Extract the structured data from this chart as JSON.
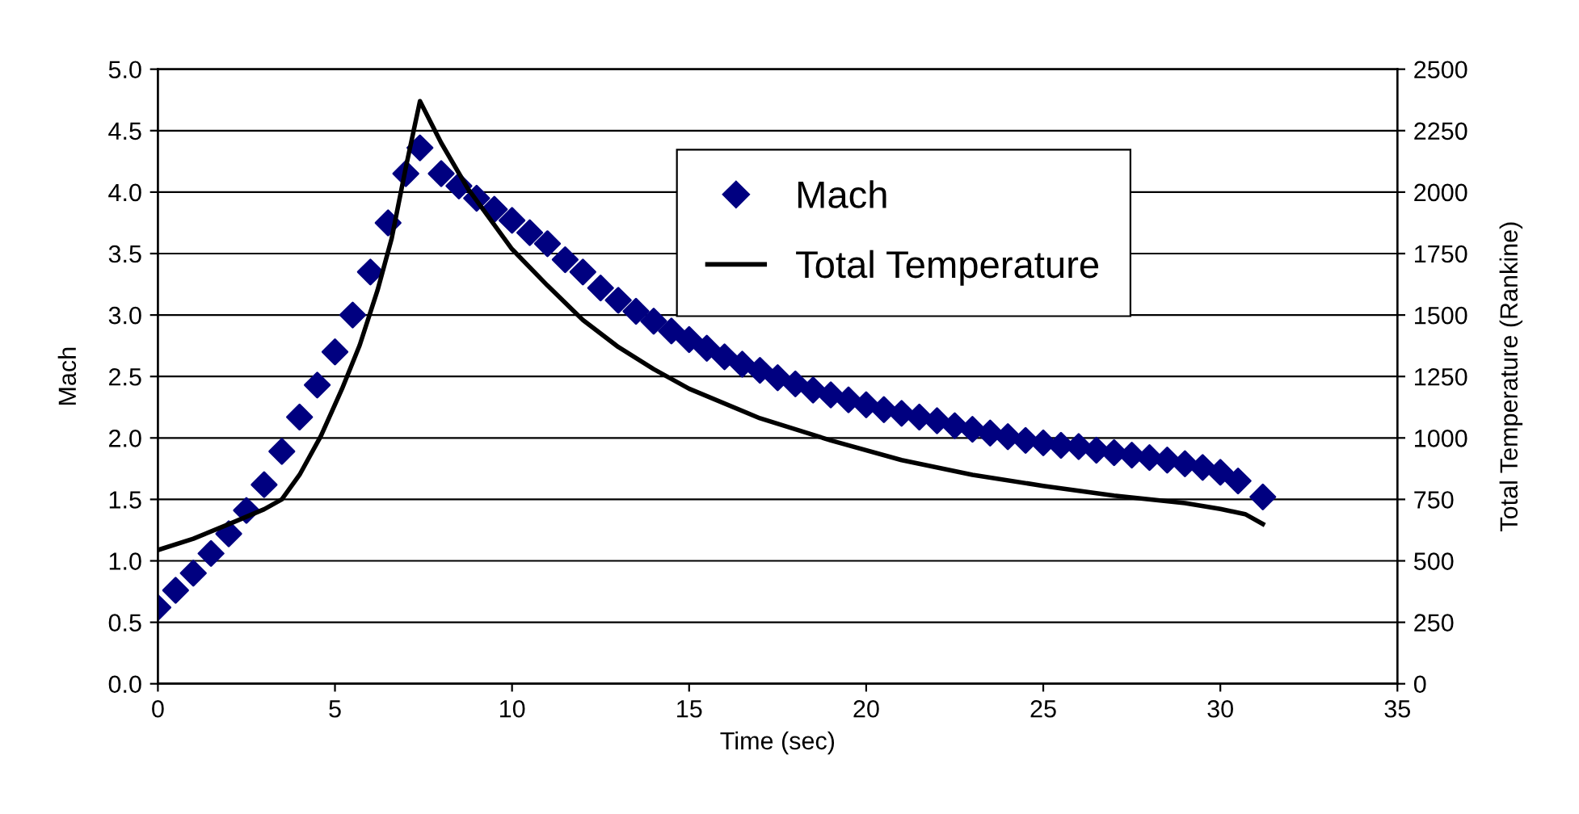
{
  "chart_data": {
    "type": "line",
    "xlabel": "Time (sec)",
    "ylabel": "Mach",
    "y2label": "Total Temperature (Rankine)",
    "xlim": [
      0,
      35
    ],
    "xticks": [
      0,
      5,
      10,
      15,
      20,
      25,
      30,
      35
    ],
    "ylim": [
      0,
      5
    ],
    "yticks": [
      {
        "value": 0,
        "label": "0.0"
      },
      {
        "value": 0.5,
        "label": "0.5"
      },
      {
        "value": 1,
        "label": "1.0"
      },
      {
        "value": 1.5,
        "label": "1.5"
      },
      {
        "value": 2,
        "label": "2.0"
      },
      {
        "value": 2.5,
        "label": "2.5"
      },
      {
        "value": 3,
        "label": "3.0"
      },
      {
        "value": 3.5,
        "label": "3.5"
      },
      {
        "value": 4,
        "label": "4.0"
      },
      {
        "value": 4.5,
        "label": "4.5"
      },
      {
        "value": 5,
        "label": "5.0"
      }
    ],
    "y2lim": [
      0,
      2500
    ],
    "y2ticks": [
      0,
      250,
      500,
      750,
      1000,
      1250,
      1500,
      1750,
      2000,
      2250,
      2500
    ],
    "grid": "y",
    "legend": "top right",
    "series": [
      {
        "name": "Mach",
        "type": "scatter",
        "marker": "diamond",
        "color": "#000080",
        "x": [
          0,
          0.5,
          1,
          1.5,
          2,
          2.5,
          3,
          3.5,
          4,
          4.5,
          5,
          5.5,
          6,
          6.5,
          7,
          7.4,
          8,
          8.5,
          9,
          9.5,
          10,
          10.5,
          11,
          11.5,
          12,
          12.5,
          13,
          13.5,
          14,
          14.5,
          15,
          15.5,
          16,
          16.5,
          17,
          17.5,
          18,
          18.5,
          19,
          19.5,
          20,
          20.5,
          21,
          21.5,
          22,
          22.5,
          23,
          23.5,
          24,
          24.5,
          25,
          25.5,
          26,
          26.5,
          27,
          27.5,
          28,
          28.5,
          29,
          29.5,
          30,
          30.5,
          31.2
        ],
        "values": [
          0.62,
          0.76,
          0.9,
          1.06,
          1.22,
          1.41,
          1.62,
          1.89,
          2.17,
          2.43,
          2.7,
          3.0,
          3.35,
          3.75,
          4.15,
          4.36,
          4.15,
          4.05,
          3.95,
          3.86,
          3.77,
          3.67,
          3.58,
          3.45,
          3.35,
          3.22,
          3.12,
          3.03,
          2.95,
          2.87,
          2.8,
          2.73,
          2.66,
          2.6,
          2.55,
          2.49,
          2.44,
          2.39,
          2.35,
          2.31,
          2.27,
          2.23,
          2.2,
          2.17,
          2.14,
          2.1,
          2.07,
          2.04,
          2.01,
          1.98,
          1.96,
          1.94,
          1.93,
          1.9,
          1.88,
          1.86,
          1.84,
          1.82,
          1.79,
          1.76,
          1.72,
          1.65,
          1.52
        ]
      },
      {
        "name": "Total Temperature",
        "axis": "y2",
        "color": "#000000",
        "line_style": "solid",
        "marker": "none",
        "x": [
          0,
          1,
          2,
          3,
          3.5,
          4,
          4.6,
          5.2,
          5.7,
          6.2,
          6.6,
          7.0,
          7.4,
          8,
          8.75,
          10,
          11,
          12,
          13,
          14,
          15,
          17,
          19,
          21,
          23,
          25,
          27,
          29,
          30,
          30.7,
          31.2
        ],
        "values": [
          544,
          590,
          649,
          710,
          750,
          850,
          1007,
          1200,
          1378,
          1600,
          1811,
          2100,
          2370,
          2200,
          2015,
          1768,
          1620,
          1480,
          1370,
          1280,
          1200,
          1080,
          990,
          910,
          850,
          805,
          765,
          735,
          711,
          690,
          650
        ]
      }
    ]
  }
}
